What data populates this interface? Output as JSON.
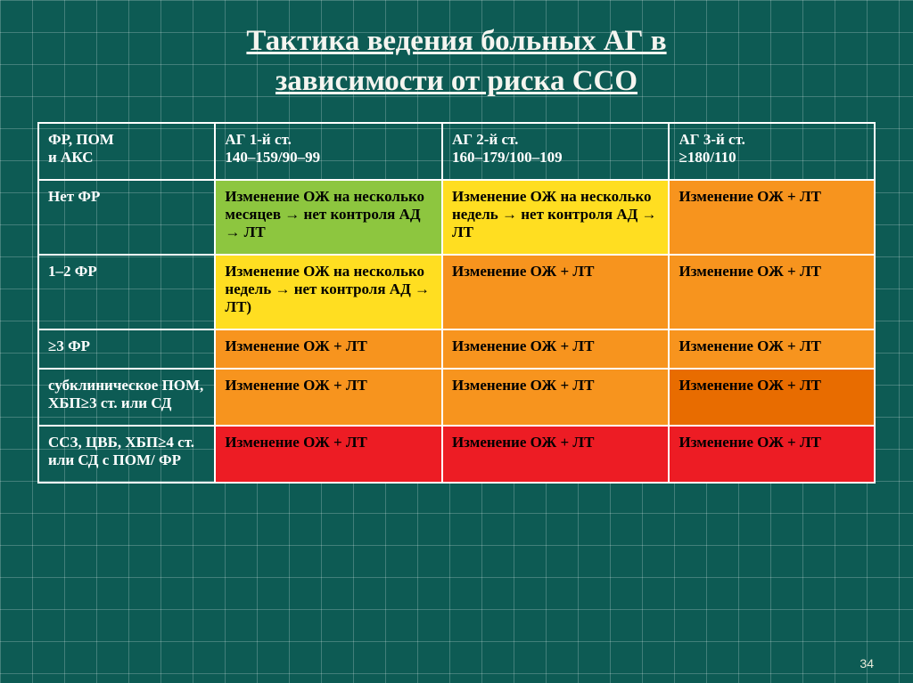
{
  "slide": {
    "title_line1": "Тактика ведения больных АГ в",
    "title_line2": "зависимости от риска ССО",
    "pagenum": "34",
    "background_color": "#0d5b54",
    "grid_line_color": "rgba(255,255,255,0.22)"
  },
  "table": {
    "type": "table",
    "border_color": "#ffffff",
    "cell_fontsize": 17,
    "header_text_color": "#ffffff",
    "body_text_color": "#000000",
    "colors": {
      "green": "#8dc63f",
      "yellow": "#ffde21",
      "orange": "#f7941e",
      "dkorange": "#e86c00",
      "red": "#ed1c24"
    },
    "header": {
      "c1a": "ФР, ПОМ",
      "c1b": "и АКС",
      "c2a": "АГ 1-й ст.",
      "c2b": "140–159/90–99",
      "c3a": "АГ 2-й ст.",
      "c3b": "160–179/100–109",
      "c4a": "АГ 3-й ст.",
      "c4b": "≥180/110"
    },
    "rows": [
      {
        "label": "Нет ФР",
        "c2": {
          "text": "Изменение ОЖ на несколько месяцев → нет контроля АД → ЛТ",
          "fill": "green"
        },
        "c3": {
          "text": "Изменение ОЖ на несколько недель → нет контроля АД → ЛТ",
          "fill": "yellow"
        },
        "c4": {
          "text": "Изменение ОЖ + ЛТ",
          "fill": "orange"
        }
      },
      {
        "label": "1–2 ФР",
        "c2": {
          "text": "Изменение ОЖ на несколько недель → нет контроля АД → ЛТ)",
          "fill": "yellow"
        },
        "c3": {
          "text": "Изменение ОЖ + ЛТ",
          "fill": "orange"
        },
        "c4": {
          "text": "Изменение ОЖ + ЛТ",
          "fill": "orange"
        }
      },
      {
        "label": "≥3 ФР",
        "c2": {
          "text": "Изменение ОЖ + ЛТ",
          "fill": "orange"
        },
        "c3": {
          "text": "Изменение ОЖ + ЛТ",
          "fill": "orange"
        },
        "c4": {
          "text": "Изменение ОЖ + ЛТ",
          "fill": "orange"
        }
      },
      {
        "label": "субклиническое ПОМ, ХБП≥3 ст. или СД",
        "c2": {
          "text": "Изменение ОЖ + ЛТ",
          "fill": "orange"
        },
        "c3": {
          "text": "Изменение ОЖ + ЛТ",
          "fill": "orange"
        },
        "c4": {
          "text": "Изменение ОЖ + ЛТ",
          "fill": "dkorange"
        }
      },
      {
        "label": "ССЗ, ЦВБ, ХБП≥4 ст. или СД с ПОМ/ ФР",
        "c2": {
          "text": "Изменение ОЖ + ЛТ",
          "fill": "red"
        },
        "c3": {
          "text": "Изменение ОЖ + ЛТ",
          "fill": "red"
        },
        "c4": {
          "text": "Изменение ОЖ + ЛТ",
          "fill": "red"
        }
      }
    ]
  }
}
